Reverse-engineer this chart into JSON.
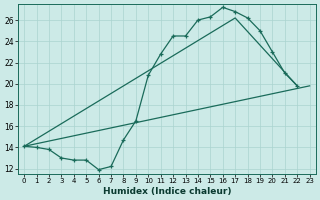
{
  "xlabel": "Humidex (Indice chaleur)",
  "xlim": [
    -0.5,
    23.5
  ],
  "ylim": [
    11.5,
    27.5
  ],
  "yticks": [
    12,
    14,
    16,
    18,
    20,
    22,
    24,
    26
  ],
  "xticks": [
    0,
    1,
    2,
    3,
    4,
    5,
    6,
    7,
    8,
    9,
    10,
    11,
    12,
    13,
    14,
    15,
    16,
    17,
    18,
    19,
    20,
    21,
    22,
    23
  ],
  "bg_color": "#cceae7",
  "grid_color": "#aad4d0",
  "line_color": "#1a6b5a",
  "curve_x": [
    0,
    1,
    2,
    3,
    4,
    5,
    6,
    7,
    8,
    9,
    10,
    11,
    12,
    13,
    14,
    15,
    16,
    17,
    18,
    19,
    20,
    21,
    22
  ],
  "curve_y": [
    14.1,
    14.0,
    13.8,
    13.0,
    12.8,
    12.8,
    11.9,
    12.2,
    14.7,
    16.5,
    20.8,
    22.8,
    24.5,
    24.5,
    26.0,
    26.3,
    27.2,
    26.8,
    26.2,
    25.0,
    23.0,
    21.0,
    19.8
  ],
  "line1_x": [
    0,
    23
  ],
  "line1_y": [
    14.1,
    19.8
  ],
  "line2_x": [
    0,
    17,
    22
  ],
  "line2_y": [
    14.1,
    26.2,
    19.8
  ]
}
